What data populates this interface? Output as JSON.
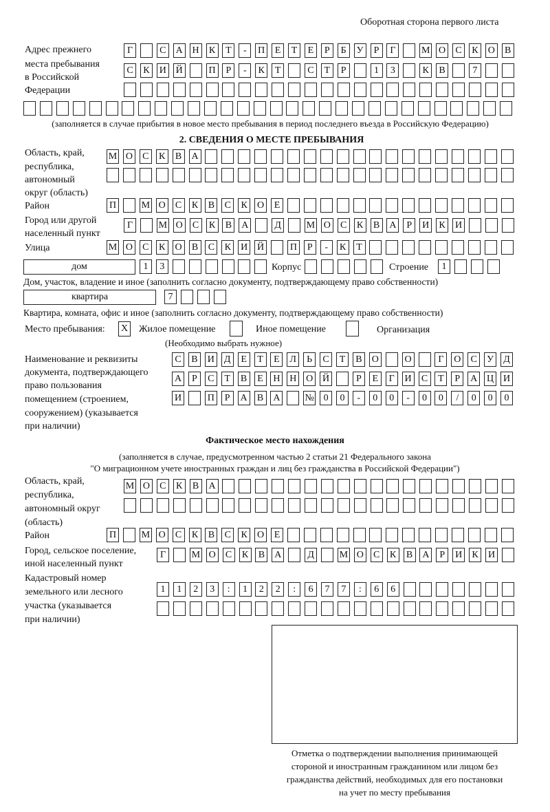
{
  "header": {
    "page_side": "Оборотная сторона первого листа"
  },
  "prev_address": {
    "label": [
      "Адрес прежнего",
      "места пребывания",
      "в Российской",
      "Федерации"
    ],
    "rows": [
      "Г САНКТ-ПЕТЕРБУРГ МОСКОВ",
      "СКИЙ ПР-КТ СТР 13 КВ 7  ",
      "                        ",
      "                              "
    ],
    "note": "(заполняется в случае прибытия в новое место пребывания в период последнего въезда в Российскую Федерацию)"
  },
  "section2": {
    "title": "2. СВЕДЕНИЯ О МЕСТЕ ПРЕБЫВАНИЯ",
    "region_label": [
      "Область, край,",
      "республика,",
      "автономный",
      "округ (область)"
    ],
    "region_rows": [
      "МОСКВА                   ",
      "                         "
    ],
    "district_label": "Район",
    "district_row": "П МОСКВСКОЕ              ",
    "city_label": [
      "Город или другой",
      "населенный пункт"
    ],
    "city_row": "Г МОСКВА Д МОСКВАРИКИ   ",
    "street_label": "Улица",
    "street_row": "МОСКОВСКИЙ ПР-КТ         ",
    "house_type": "дом",
    "house_row": "13      ",
    "korpus_label": "Корпус",
    "korpus_row": "     ",
    "stroenie_label": "Строение",
    "stroenie_row": "1   ",
    "house_note": "Дом, участок, владение и иное (заполнить согласно документу, подтверждающему право собственности)",
    "flat_type": "квартира",
    "flat_row": "7   ",
    "flat_note": "Квартира, комната, офис и иное (заполнить согласно документу, подтверждающему право собственности)",
    "place_label": "Место пребывания:",
    "place_options": [
      {
        "label": "Жилое помещение",
        "checked": true,
        "mark": "X"
      },
      {
        "label": "Иное помещение",
        "checked": false,
        "mark": ""
      },
      {
        "label": "Организация",
        "checked": false,
        "mark": ""
      }
    ],
    "place_note": "(Необходимо выбрать нужное)",
    "doc_label": [
      "Наименование и реквизиты",
      "документа, подтверждающего",
      "право пользования",
      "помещением (строением,",
      "сооружением) (указывается",
      "при наличии)"
    ],
    "doc_rows": [
      "СВИДЕТЕЛЬСТВО О ГОСУД",
      "АРСТВЕННОЙ РЕГИСТРАЦИ",
      "И ПРАВА №00-00-00/000"
    ]
  },
  "actual": {
    "title": "Фактическое место нахождения",
    "note": [
      "(заполняется в случае, предусмотренном частью 2 статьи 21 Федерального закона",
      "\"О миграционном учете иностранных граждан и лиц без гражданства в Российской Федерации\")"
    ],
    "region_label": [
      "Область, край,",
      "республика,",
      "автономный округ",
      "(область)"
    ],
    "region_rows": [
      "МОСКВА                  ",
      "                        "
    ],
    "district_label": "Район",
    "district_row": "П МОСКВСКОЕ              ",
    "city_label": [
      "Город, сельское поселение,",
      "иной населенный пункт"
    ],
    "city_row": "Г МОСКВА Д МОСКВАРИКИ ",
    "cadastre_label": [
      "Кадастровый номер",
      "земельного или лесного",
      "участка (указывается",
      "при наличии)"
    ],
    "cadastre_rows": [
      "1123:122:677:66       ",
      "                      "
    ]
  },
  "stamp": {
    "caption": [
      "Отметка о подтверждении выполнения принимающей",
      "стороной и иностранным гражданином или лицом без",
      "гражданства действий, необходимых для его постановки",
      "на учет по месту пребывания"
    ]
  }
}
